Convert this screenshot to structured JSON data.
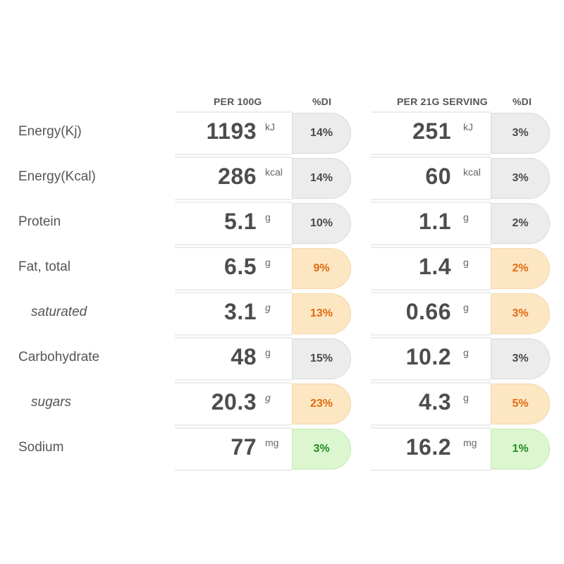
{
  "headers": {
    "per100": "PER 100G",
    "di1": "%DI",
    "perServing": "PER 21G SERVING",
    "di2": "%DI"
  },
  "rows": [
    {
      "label": "Energy(Kj)",
      "sub": false,
      "v100": "1193",
      "u100": "kJ",
      "di100": "14%",
      "vserv": "251",
      "userv": "kJ",
      "diserv": "3%",
      "color100": "gray",
      "colorserv": "gray"
    },
    {
      "label": "Energy(Kcal)",
      "sub": false,
      "v100": "286",
      "u100": "kcal",
      "di100": "14%",
      "vserv": "60",
      "userv": "kcal",
      "diserv": "3%",
      "color100": "gray",
      "colorserv": "gray"
    },
    {
      "label": "Protein",
      "sub": false,
      "v100": "5.1",
      "u100": "g",
      "di100": "10%",
      "vserv": "1.1",
      "userv": "g",
      "diserv": "2%",
      "color100": "gray",
      "colorserv": "gray"
    },
    {
      "label": "Fat, total",
      "sub": false,
      "v100": "6.5",
      "u100": "g",
      "di100": "9%",
      "vserv": "1.4",
      "userv": "g",
      "diserv": "2%",
      "color100": "orange",
      "colorserv": "orange"
    },
    {
      "label": "saturated",
      "sub": true,
      "v100": "3.1",
      "u100": "g",
      "di100": "13%",
      "vserv": "0.66",
      "userv": "g",
      "diserv": "3%",
      "color100": "orange",
      "colorserv": "orange"
    },
    {
      "label": "Carbohydrate",
      "sub": false,
      "v100": "48",
      "u100": "g",
      "di100": "15%",
      "vserv": "10.2",
      "userv": "g",
      "diserv": "3%",
      "color100": "gray",
      "colorserv": "gray"
    },
    {
      "label": "sugars",
      "sub": true,
      "v100": "20.3",
      "u100": "g",
      "di100": "23%",
      "vserv": "4.3",
      "userv": "g",
      "diserv": "5%",
      "color100": "orange",
      "colorserv": "orange"
    },
    {
      "label": "Sodium",
      "sub": false,
      "v100": "77",
      "u100": "mg",
      "di100": "3%",
      "vserv": "16.2",
      "userv": "mg",
      "diserv": "1%",
      "color100": "green",
      "colorserv": "green"
    }
  ]
}
